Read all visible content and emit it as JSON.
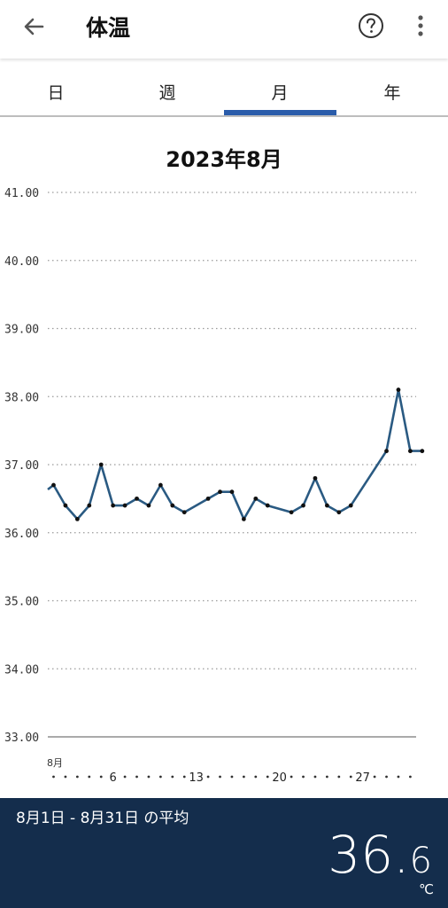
{
  "header": {
    "title": "体温"
  },
  "tabs": [
    {
      "label": "日"
    },
    {
      "label": "週"
    },
    {
      "label": "月"
    },
    {
      "label": "年"
    }
  ],
  "active_tab": 2,
  "chart_title": "2023年8月",
  "chart_data": {
    "type": "line",
    "title": "2023年8月",
    "xlabel": "",
    "ylabel": "",
    "ylim": [
      33,
      41
    ],
    "y_ticks": [
      "41.00",
      "40.00",
      "39.00",
      "38.00",
      "37.00",
      "36.00",
      "35.00",
      "34.00",
      "33.00"
    ],
    "x_range": [
      1,
      31
    ],
    "x_month_label": "8月",
    "x_tick_labels": [
      {
        "day": 6,
        "label": "6"
      },
      {
        "day": 13,
        "label": "13"
      },
      {
        "day": 20,
        "label": "20"
      },
      {
        "day": 27,
        "label": "27"
      }
    ],
    "grid": true,
    "color": "#2a5a82",
    "series": [
      {
        "x": [
          1,
          2,
          3,
          4,
          5,
          6,
          7,
          8,
          9,
          10,
          11,
          12,
          14,
          15,
          16,
          17,
          18,
          19,
          21,
          22,
          23,
          24,
          25,
          26,
          29,
          30,
          31,
          32
        ],
        "y": [
          36.7,
          36.4,
          36.2,
          36.4,
          37.0,
          36.4,
          36.4,
          36.5,
          36.4,
          36.7,
          36.4,
          36.3,
          36.5,
          36.6,
          36.6,
          36.2,
          36.5,
          36.4,
          36.3,
          36.4,
          36.8,
          36.4,
          36.3,
          36.4,
          37.2,
          38.1,
          37.2,
          37.2
        ]
      }
    ]
  },
  "summary": {
    "label": "8月1日 - 8月31日 の平均",
    "value_int": "36.",
    "value_dec": "6",
    "unit": "℃"
  }
}
